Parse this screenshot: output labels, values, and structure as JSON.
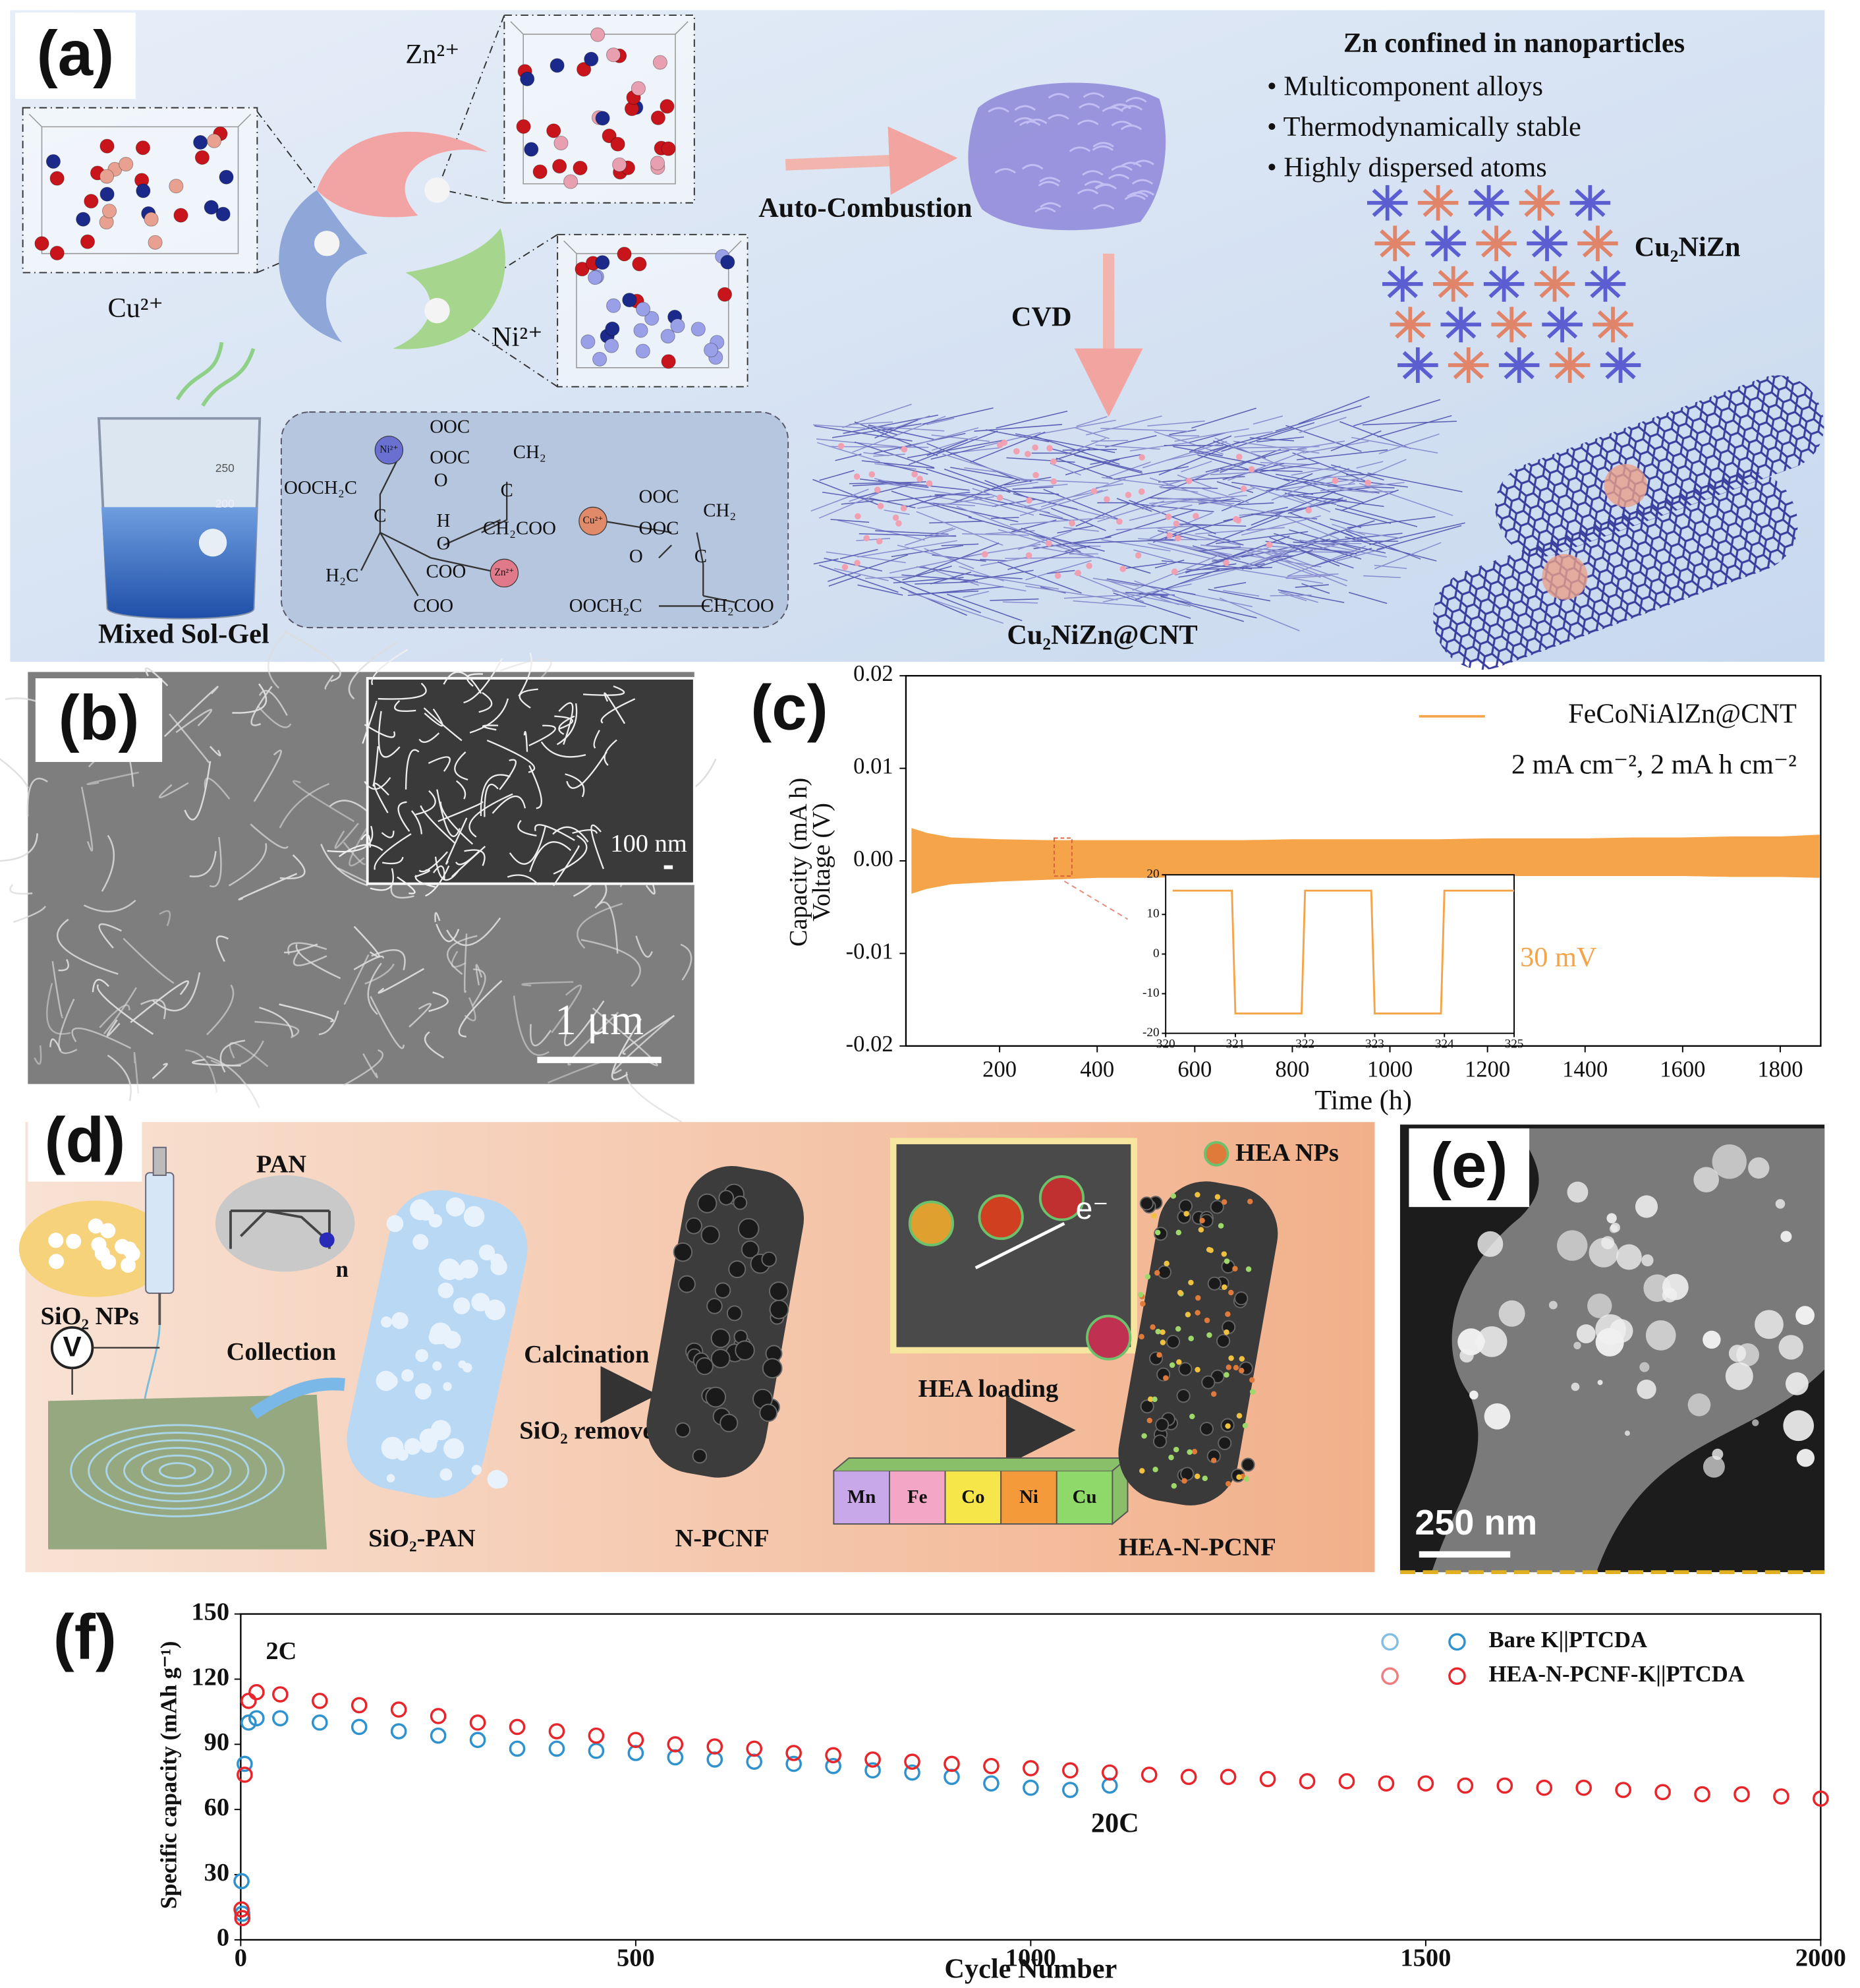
{
  "panels": {
    "labels": [
      "(a)",
      "(b)",
      "(c)",
      "(d)",
      "(e)",
      "(f)"
    ],
    "a": {
      "ions": [
        "Zn²⁺",
        "Cu²⁺",
        "Ni²⁺"
      ],
      "steps": [
        "Auto-Combustion",
        "CVD"
      ],
      "heading": "Zn confined in nanoparticles",
      "bullets": [
        "• Multicomponent alloys",
        "• Thermodynamically stable",
        "• Highly dispersed atoms"
      ],
      "alloy": "Cu₂NiZn",
      "product": "Cu₂NiZn@CNT",
      "precursor": "Mixed Sol-Gel",
      "beaker_marks": [
        "250",
        "200"
      ],
      "chem": [
        "OOC",
        "CH₂",
        "Ni²⁺",
        "OOC",
        "OOCH₂C",
        "O",
        "C",
        "H",
        "O",
        "C",
        "CH₂COO",
        "Cu²⁺",
        "OOC",
        "CH₂",
        "OOC",
        "O",
        "C",
        "H₂C",
        "COO",
        "Zn²⁺",
        "COO",
        "OOCH₂C",
        "CH₂COO"
      ]
    },
    "b": {
      "inset_scale": "100 nm",
      "scale": "1 μm"
    },
    "d": {
      "nps": "SiO₂ NPs",
      "polymer": "PAN",
      "repeat": "n",
      "meter": "V",
      "collect": "Collection",
      "calcine": "Calcination",
      "remove": "SiO₂ remove",
      "loading": "HEA loading",
      "legend": "HEA NPs",
      "electron": "e⁻",
      "stages": [
        "SiO₂-PAN",
        "N-PCNF",
        "HEA-N-PCNF"
      ],
      "elements": [
        "Mn",
        "Fe",
        "Co",
        "Ni",
        "Cu"
      ]
    },
    "e": {
      "scale": "250 nm"
    }
  },
  "chart_data": [
    {
      "type": "band",
      "xlabel": "Time (h)",
      "ylabels": [
        "Capacity (mA h)",
        "Voltage (V)"
      ],
      "annotation": "2 mA cm⁻², 2 mA h cm⁻²",
      "xlim": [
        8,
        1883
      ],
      "ylim": [
        -0.02,
        0.02
      ],
      "xticks": [
        200,
        400,
        600,
        800,
        1000,
        1200,
        1400,
        1600,
        1800
      ],
      "yticks": [
        -0.02,
        -0.01,
        {
          "value": 0,
          "label": "0.00"
        },
        0.01,
        0.02
      ],
      "x": [
        20,
        50,
        100,
        200,
        300,
        400,
        500,
        600,
        700,
        800,
        900,
        1000,
        1100,
        1200,
        1300,
        1400,
        1500,
        1600,
        1700,
        1800,
        1880
      ],
      "series": [
        {
          "name": "FeCoNiAlZn@CNT",
          "color": "#f5a449",
          "values": [
            0.0035,
            0.003,
            0.0025,
            0.0023,
            0.0022,
            0.0022,
            0.0022,
            0.0022,
            0.0022,
            0.0023,
            0.0023,
            0.0023,
            0.0023,
            0.0024,
            0.0024,
            0.0024,
            0.0025,
            0.0025,
            0.0026,
            0.0026,
            0.0028
          ],
          "lower": [
            -0.0035,
            -0.003,
            -0.0025,
            -0.0022,
            -0.002,
            -0.0018,
            -0.0018,
            -0.0017,
            -0.0017,
            -0.0017,
            -0.0016,
            -0.0016,
            -0.0016,
            -0.0016,
            -0.0016,
            -0.0016,
            -0.0016,
            -0.0016,
            -0.0017,
            -0.0017,
            -0.0018
          ]
        }
      ],
      "inset": {
        "type": "line",
        "annotation": "30 mV",
        "xlim": [
          320,
          325
        ],
        "ylim": [
          -20,
          20
        ],
        "xticks": [
          320,
          321,
          322,
          323,
          324,
          325
        ],
        "yticks": [
          -20,
          -10,
          0,
          10,
          20
        ],
        "x": [
          320.1,
          320.95,
          321.0,
          321.95,
          322.0,
          322.95,
          323.0,
          323.95,
          324.0,
          325.0
        ],
        "values": [
          16,
          16,
          -15,
          -15,
          16,
          16,
          -15,
          -15,
          16,
          16
        ]
      }
    },
    {
      "type": "scatter",
      "xlabel": "Cycle Number",
      "ylabel": "Specific capacity (mAh g⁻¹)",
      "annotations": [
        "2C",
        "20C"
      ],
      "xlim": [
        0,
        2000
      ],
      "ylim": [
        0,
        150
      ],
      "xticks": [
        0,
        500,
        1000,
        1500,
        2000
      ],
      "yticks": [
        0,
        30,
        60,
        90,
        120,
        150
      ],
      "legend": "top-right",
      "series": [
        {
          "name": "Bare K||PTCDA",
          "color": "#2e92cf",
          "x": [
            1,
            2,
            5,
            10,
            20,
            50,
            100,
            150,
            200,
            250,
            300,
            350,
            400,
            450,
            500,
            550,
            600,
            650,
            700,
            750,
            800,
            850,
            900,
            950,
            1000,
            1050,
            1100
          ],
          "values": [
            27,
            12,
            81,
            100,
            102,
            102,
            100,
            98,
            96,
            94,
            92,
            88,
            88,
            87,
            86,
            84,
            83,
            82,
            81,
            80,
            78,
            77,
            75,
            72,
            70,
            69,
            71
          ]
        },
        {
          "name": "HEA-N-PCNF-K||PTCDA",
          "color": "#e8252a",
          "x": [
            1,
            2,
            5,
            10,
            20,
            50,
            100,
            150,
            200,
            250,
            300,
            350,
            400,
            450,
            500,
            550,
            600,
            650,
            700,
            750,
            800,
            850,
            900,
            950,
            1000,
            1050,
            1100,
            1150,
            1200,
            1250,
            1300,
            1350,
            1400,
            1450,
            1500,
            1550,
            1600,
            1650,
            1700,
            1750,
            1800,
            1850,
            1900,
            1950,
            2000
          ],
          "values": [
            14,
            10,
            76,
            110,
            114,
            113,
            110,
            108,
            106,
            103,
            100,
            98,
            96,
            94,
            92,
            90,
            89,
            88,
            86,
            85,
            83,
            82,
            81,
            80,
            79,
            78,
            77,
            76,
            75,
            75,
            74,
            73,
            73,
            72,
            72,
            71,
            71,
            70,
            70,
            69,
            68,
            67,
            67,
            66,
            65
          ]
        }
      ]
    }
  ]
}
